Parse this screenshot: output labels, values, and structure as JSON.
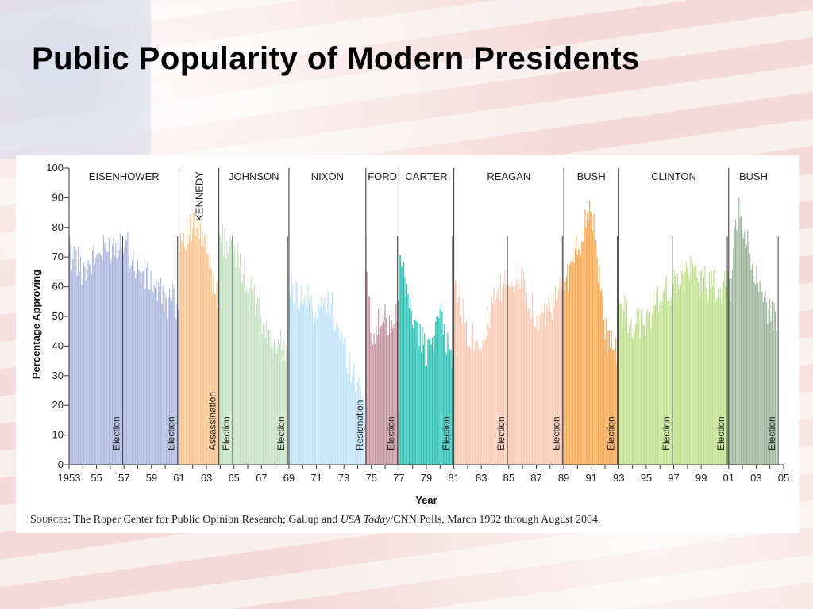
{
  "slide": {
    "title": "Public Popularity of Modern Presidents"
  },
  "colors": {
    "EISENHOWER": "#a9b4df",
    "KENNEDY": "#f9c28a",
    "JOHNSON": "#c3e2c0",
    "NIXON": "#bfe3fa",
    "FORD": "#c4919e",
    "CARTER": "#27c2b4",
    "REAGAN": "#f8c8b2",
    "BUSH": "#f8a54b",
    "CLINTON": "#bee08b",
    "BUSH2": "#9ab59a"
  },
  "sources": {
    "prefix": "Sources",
    "text1": ": The Roper Center for Public Opinion Research; Gallup and ",
    "italic": "USA Today",
    "text2": "/CNN Polls, March 1992 through August 2004."
  },
  "chart_data": {
    "type": "bar",
    "xlabel": "Year",
    "ylabel": "Percentage Approving",
    "ylim": [
      0,
      100
    ],
    "xlim": [
      1953,
      2005
    ],
    "yticks": [
      "0",
      "10",
      "20",
      "30",
      "40",
      "50",
      "60",
      "70",
      "80",
      "90",
      "100"
    ],
    "xticks": [
      {
        "year": 1953,
        "label": "1953"
      },
      {
        "year": 1955,
        "label": "55"
      },
      {
        "year": 1957,
        "label": "57"
      },
      {
        "year": 1959,
        "label": "59"
      },
      {
        "year": 1961,
        "label": "61"
      },
      {
        "year": 1963,
        "label": "63"
      },
      {
        "year": 1965,
        "label": "65"
      },
      {
        "year": 1967,
        "label": "67"
      },
      {
        "year": 1969,
        "label": "69"
      },
      {
        "year": 1971,
        "label": "71"
      },
      {
        "year": 1973,
        "label": "73"
      },
      {
        "year": 1975,
        "label": "75"
      },
      {
        "year": 1977,
        "label": "77"
      },
      {
        "year": 1979,
        "label": "79"
      },
      {
        "year": 1981,
        "label": "81"
      },
      {
        "year": 1983,
        "label": "83"
      },
      {
        "year": 1985,
        "label": "85"
      },
      {
        "year": 1987,
        "label": "87"
      },
      {
        "year": 1989,
        "label": "89"
      },
      {
        "year": 1991,
        "label": "91"
      },
      {
        "year": 1993,
        "label": "93"
      },
      {
        "year": 1995,
        "label": "95"
      },
      {
        "year": 1997,
        "label": "97"
      },
      {
        "year": 1999,
        "label": "99"
      },
      {
        "year": 2001,
        "label": "01"
      },
      {
        "year": 2003,
        "label": "03"
      },
      {
        "year": 2005,
        "label": "05"
      }
    ],
    "presidencies": [
      {
        "name": "EISENHOWER",
        "start": 1953,
        "end": 1961,
        "colorKey": "EISENHOWER",
        "vertical": false,
        "approval": [
          [
            1953,
            72
          ],
          [
            1954,
            66
          ],
          [
            1955,
            70
          ],
          [
            1956,
            73
          ],
          [
            1957,
            77
          ],
          [
            1958,
            65
          ],
          [
            1959,
            62
          ],
          [
            1960,
            55
          ],
          [
            1961,
            55
          ]
        ]
      },
      {
        "name": "KENNEDY",
        "start": 1961,
        "end": 1963.9,
        "colorKey": "KENNEDY",
        "vertical": true,
        "approval": [
          [
            1961,
            77
          ],
          [
            1961.6,
            78
          ],
          [
            1962.3,
            80
          ],
          [
            1962.9,
            74
          ],
          [
            1963.5,
            62
          ],
          [
            1963.9,
            58
          ]
        ]
      },
      {
        "name": "JOHNSON",
        "start": 1963.9,
        "end": 1969,
        "colorKey": "JOHNSON",
        "vertical": false,
        "approval": [
          [
            1963.9,
            78
          ],
          [
            1964.5,
            75
          ],
          [
            1965.5,
            68
          ],
          [
            1966.5,
            55
          ],
          [
            1967.5,
            42
          ],
          [
            1968.5,
            40
          ],
          [
            1969,
            42
          ]
        ]
      },
      {
        "name": "NIXON",
        "start": 1969,
        "end": 1974.6,
        "colorKey": "NIXON",
        "vertical": false,
        "approval": [
          [
            1969,
            60
          ],
          [
            1970,
            57
          ],
          [
            1971,
            52
          ],
          [
            1972,
            55
          ],
          [
            1973,
            40
          ],
          [
            1974,
            27
          ],
          [
            1974.6,
            25
          ]
        ]
      },
      {
        "name": "FORD",
        "start": 1974.6,
        "end": 1977,
        "colorKey": "FORD",
        "vertical": false,
        "approval": [
          [
            1974.6,
            68
          ],
          [
            1975,
            45
          ],
          [
            1976,
            48
          ],
          [
            1977,
            52
          ]
        ]
      },
      {
        "name": "CARTER",
        "start": 1977,
        "end": 1981,
        "colorKey": "CARTER",
        "vertical": false,
        "approval": [
          [
            1977,
            70
          ],
          [
            1978,
            50
          ],
          [
            1979,
            38
          ],
          [
            1980,
            50
          ],
          [
            1981,
            33
          ]
        ]
      },
      {
        "name": "REAGAN",
        "start": 1981,
        "end": 1989,
        "colorKey": "REAGAN",
        "vertical": false,
        "approval": [
          [
            1981,
            65
          ],
          [
            1982,
            45
          ],
          [
            1983,
            42
          ],
          [
            1984,
            55
          ],
          [
            1985,
            63
          ],
          [
            1986,
            63
          ],
          [
            1987,
            50
          ],
          [
            1988,
            52
          ],
          [
            1989,
            60
          ]
        ]
      },
      {
        "name": "BUSH",
        "start": 1989,
        "end": 1993,
        "colorKey": "BUSH",
        "vertical": false,
        "approval": [
          [
            1989,
            60
          ],
          [
            1990,
            72
          ],
          [
            1991,
            89
          ],
          [
            1992,
            45
          ],
          [
            1993,
            35
          ]
        ]
      },
      {
        "name": "CLINTON",
        "start": 1993,
        "end": 2001,
        "colorKey": "CLINTON",
        "vertical": false,
        "approval": [
          [
            1993,
            55
          ],
          [
            1994,
            47
          ],
          [
            1995,
            48
          ],
          [
            1996,
            57
          ],
          [
            1997,
            60
          ],
          [
            1998,
            66
          ],
          [
            1999,
            62
          ],
          [
            2000,
            60
          ],
          [
            2001,
            60
          ]
        ]
      },
      {
        "name": "BUSH",
        "start": 2001,
        "end": 2004.6,
        "colorKey": "BUSH2",
        "vertical": false,
        "approval": [
          [
            2001,
            55
          ],
          [
            2001.7,
            88
          ],
          [
            2002.5,
            72
          ],
          [
            2003.3,
            62
          ],
          [
            2004,
            50
          ],
          [
            2004.6,
            48
          ]
        ]
      }
    ],
    "events": [
      {
        "label": "Election",
        "year": 1956.9
      },
      {
        "label": "Election",
        "year": 1960.9
      },
      {
        "label": "Assassination",
        "year": 1963.9
      },
      {
        "label": "Election",
        "year": 1964.9
      },
      {
        "label": "Election",
        "year": 1968.9
      },
      {
        "label": "Resignation",
        "year": 1974.6
      },
      {
        "label": "Election",
        "year": 1976.9
      },
      {
        "label": "Election",
        "year": 1980.9
      },
      {
        "label": "Election",
        "year": 1984.9
      },
      {
        "label": "Election",
        "year": 1988.9
      },
      {
        "label": "Election",
        "year": 1992.9
      },
      {
        "label": "Election",
        "year": 1996.9
      },
      {
        "label": "Election",
        "year": 2000.9
      },
      {
        "label": "Election",
        "year": 2004.6
      }
    ]
  }
}
